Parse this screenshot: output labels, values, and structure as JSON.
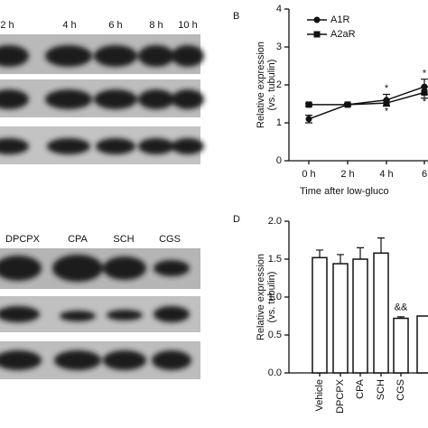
{
  "blots": [
    {
      "labels": [
        "2 h",
        "4 h",
        "6 h",
        "8 h",
        "10 h"
      ]
    },
    {
      "labels": [
        "DPCPX",
        "CPA",
        "SCH",
        "CGS"
      ]
    }
  ],
  "chart_data": [
    {
      "type": "line",
      "panel": "B",
      "categories": [
        "0 h",
        "2 h",
        "4 h",
        "6"
      ],
      "series": [
        {
          "name": "A1R",
          "color": "#111111",
          "marker": "circle",
          "values": [
            1.1,
            1.48,
            1.6,
            1.95
          ],
          "errors": [
            0.1,
            0.03,
            0.15,
            0.2
          ]
        },
        {
          "name": "A2aR",
          "color": "#111111",
          "marker": "square",
          "values": [
            1.48,
            1.48,
            1.52,
            1.8
          ],
          "errors": [
            0.03,
            0.03,
            0.08,
            0.15
          ]
        }
      ],
      "annotations": [
        "*",
        "*",
        "*",
        "*"
      ],
      "ylim": [
        0,
        4
      ],
      "yticks": [
        0,
        1,
        2,
        3,
        4
      ],
      "ylabel": [
        "Relative expression",
        "(vs. tubulin)"
      ],
      "xlabel": "Time after low-gluco"
    },
    {
      "type": "bar",
      "panel": "D",
      "categories": [
        "Vehicle",
        "DPCPX",
        "CPA",
        "SCH",
        "CGS",
        null
      ],
      "values": [
        1.52,
        1.44,
        1.5,
        1.58,
        0.72,
        0.75
      ],
      "errors": [
        0.1,
        0.12,
        0.15,
        0.2,
        0.02,
        null
      ],
      "color": "#ffffff",
      "annotations": [
        "&&"
      ],
      "ylim": [
        0,
        2
      ],
      "yticks": [
        {
          "value": 0,
          "label": "0.0"
        },
        {
          "value": 0.5,
          "label": "0.5"
        },
        {
          "value": 1,
          "label": "1.0"
        },
        {
          "value": 1.5,
          "label": "1.5"
        },
        {
          "value": 2,
          "label": "2.0"
        }
      ],
      "ylabel": [
        "Relative expression",
        "(vs. tubulin)"
      ]
    }
  ]
}
